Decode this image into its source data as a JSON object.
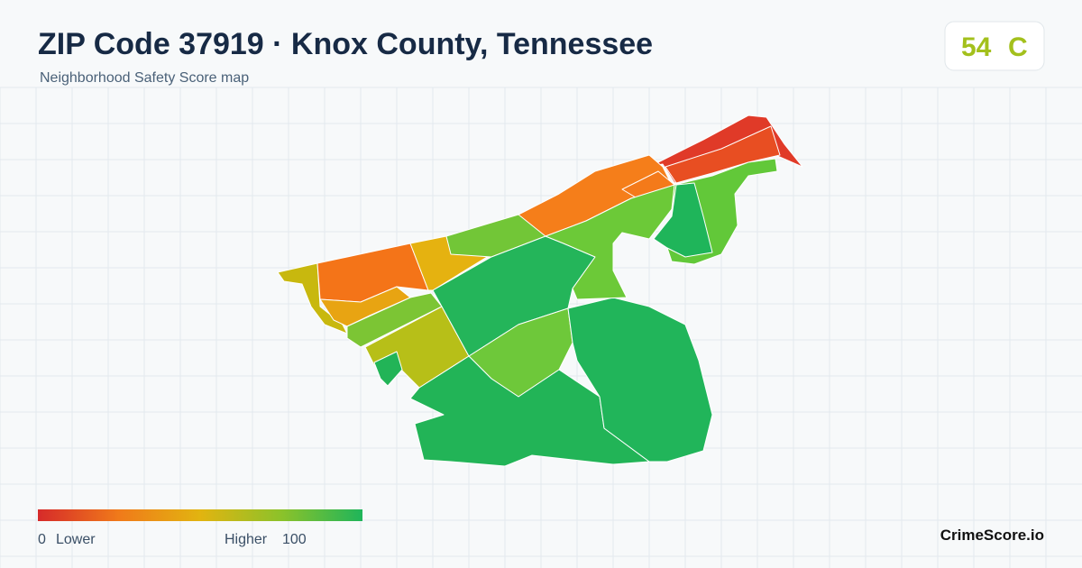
{
  "header": {
    "title": "ZIP Code 37919 · Knox County, Tennessee",
    "subtitle": "Neighborhood Safety Score map"
  },
  "score": {
    "value": "54",
    "grade": "C"
  },
  "legend": {
    "min": "0",
    "min_label": "Lower",
    "max_label": "Higher",
    "max": "100"
  },
  "brand": "CrimeScore.io"
}
